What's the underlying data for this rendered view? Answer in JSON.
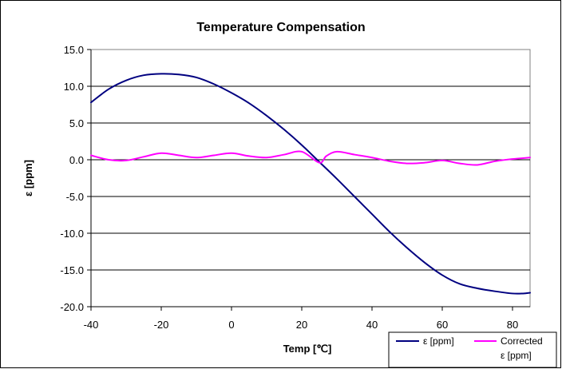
{
  "chart_data": {
    "type": "line",
    "title": "Temperature Compensation",
    "xlabel": "Temp [℃]",
    "ylabel": "ε [ppm]",
    "xlim": [
      -40,
      85
    ],
    "ylim": [
      -20,
      15
    ],
    "x_ticks": [
      "-40",
      "-20",
      "0",
      "20",
      "40",
      "60",
      "80"
    ],
    "y_ticks": [
      "15.0",
      "10.0",
      "5.0",
      "0.0",
      "-5.0",
      "-10.0",
      "-15.0",
      "-20.0"
    ],
    "grid": "horizontal",
    "legend_position": "bottom-right",
    "series": [
      {
        "name": "ε [ppm]",
        "color": "#000080",
        "x": [
          -40,
          -35,
          -30,
          -25,
          -20,
          -15,
          -10,
          -5,
          0,
          5,
          10,
          15,
          20,
          25,
          30,
          35,
          40,
          45,
          50,
          55,
          60,
          65,
          70,
          75,
          80,
          83,
          85
        ],
        "y": [
          7.8,
          9.6,
          10.8,
          11.5,
          11.7,
          11.6,
          11.2,
          10.3,
          9.1,
          7.7,
          6.0,
          4.1,
          2.0,
          -0.3,
          -2.6,
          -5.0,
          -7.4,
          -9.8,
          -12.0,
          -14.0,
          -15.7,
          -16.9,
          -17.5,
          -17.9,
          -18.2,
          -18.2,
          -18.1
        ]
      },
      {
        "name": "Corrected ε [ppm]",
        "color": "#ff00ff",
        "x": [
          -40,
          -35,
          -30,
          -25,
          -20,
          -15,
          -10,
          -5,
          0,
          5,
          10,
          15,
          20,
          25,
          27,
          30,
          35,
          40,
          45,
          50,
          55,
          60,
          65,
          70,
          75,
          80,
          85
        ],
        "y": [
          0.6,
          0.0,
          -0.1,
          0.4,
          0.9,
          0.6,
          0.3,
          0.6,
          0.9,
          0.5,
          0.3,
          0.7,
          1.1,
          -0.4,
          0.5,
          1.1,
          0.7,
          0.3,
          -0.2,
          -0.5,
          -0.4,
          -0.1,
          -0.5,
          -0.7,
          -0.2,
          0.1,
          0.3
        ]
      }
    ],
    "legend": [
      "ε [ppm]",
      "Corrected",
      "ε [ppm]"
    ]
  }
}
